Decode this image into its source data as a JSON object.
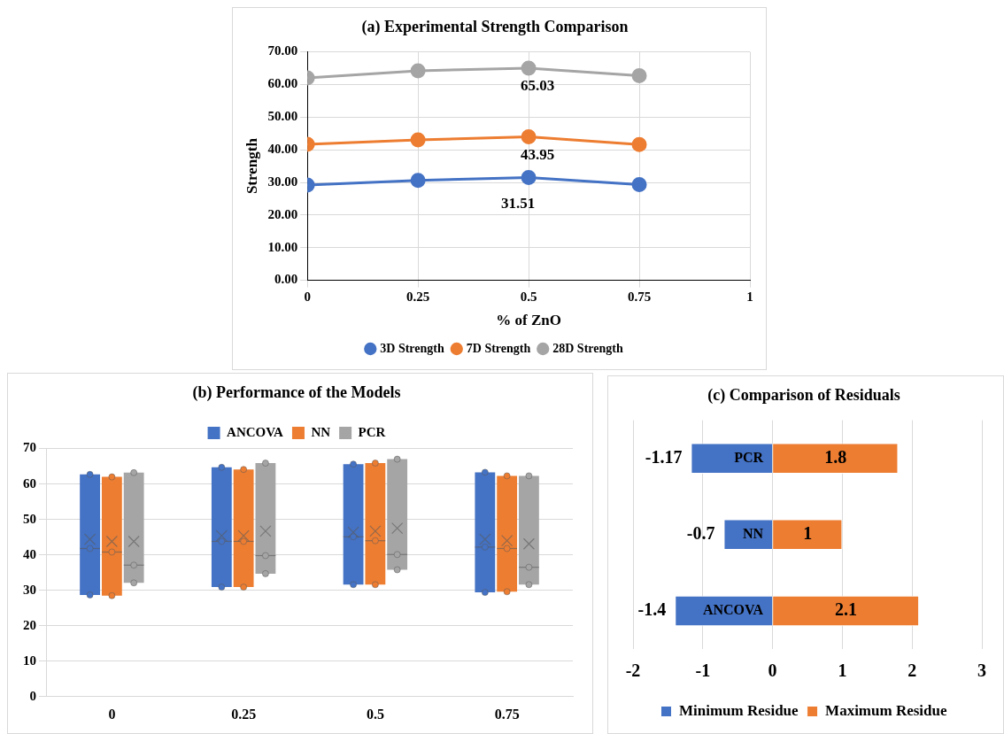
{
  "chart_data": [
    {
      "type": "line",
      "title": "(a) Experimental Strength Comparison",
      "xlabel": "% of ZnO",
      "ylabel": "Strength",
      "x": [
        0,
        0.25,
        0.5,
        0.75
      ],
      "series": [
        {
          "name": "3D Strength",
          "color": "#4472c4",
          "values": [
            29.2,
            30.6,
            31.51,
            29.3
          ],
          "value_labels": [
            null,
            null,
            "31.51",
            null
          ]
        },
        {
          "name": "7D Strength",
          "color": "#ed7d31",
          "values": [
            41.7,
            43.0,
            43.95,
            41.6
          ],
          "value_labels": [
            null,
            null,
            "43.95",
            null
          ]
        },
        {
          "name": "28D Strength",
          "color": "#a5a5a5",
          "values": [
            62.0,
            64.2,
            65.03,
            62.7
          ],
          "value_labels": [
            null,
            null,
            "65.03",
            null
          ]
        }
      ],
      "xlim": [
        0,
        1
      ],
      "xticks": [
        0,
        0.25,
        0.5,
        0.75,
        1
      ],
      "ylim": [
        0,
        70
      ],
      "yticks": [
        {
          "value": 0,
          "label": "0.00"
        },
        {
          "value": 10,
          "label": "10.00"
        },
        {
          "value": 20,
          "label": "20.00"
        },
        {
          "value": 30,
          "label": "30.00"
        },
        {
          "value": 40,
          "label": "40.00"
        },
        {
          "value": 50,
          "label": "50.00"
        },
        {
          "value": 60,
          "label": "60.00"
        },
        {
          "value": 70,
          "label": "70.00"
        }
      ],
      "grid": true,
      "legend": "bottom",
      "marker": "circle",
      "line_style": "solid"
    },
    {
      "type": "box",
      "title": "(b) Performance of the Models",
      "categories": [
        "0",
        "0.25",
        "0.5",
        "0.75"
      ],
      "series": [
        {
          "name": "ANCOVA",
          "color": "#4472c4",
          "boxes": [
            {
              "low": 28.7,
              "q1": 28.7,
              "median": 41.8,
              "q3": 62.7,
              "high": 62.7,
              "mean": 44.4
            },
            {
              "low": 30.9,
              "q1": 30.9,
              "median": 43.8,
              "q3": 64.7,
              "high": 64.7,
              "mean": 45.4
            },
            {
              "low": 31.6,
              "q1": 31.6,
              "median": 45.1,
              "q3": 65.6,
              "high": 65.6,
              "mean": 46.4
            },
            {
              "low": 29.4,
              "q1": 29.4,
              "median": 42.2,
              "q3": 63.3,
              "high": 63.3,
              "mean": 44.4
            }
          ]
        },
        {
          "name": "NN",
          "color": "#ed7d31",
          "boxes": [
            {
              "low": 28.5,
              "q1": 28.5,
              "median": 40.8,
              "q3": 62.0,
              "high": 62.0,
              "mean": 43.8
            },
            {
              "low": 30.9,
              "q1": 30.9,
              "median": 43.8,
              "q3": 64.1,
              "high": 64.1,
              "mean": 45.4
            },
            {
              "low": 31.6,
              "q1": 31.6,
              "median": 44.0,
              "q3": 65.9,
              "high": 65.9,
              "mean": 46.7
            },
            {
              "low": 29.6,
              "q1": 29.6,
              "median": 41.8,
              "q3": 62.3,
              "high": 62.3,
              "mean": 44.0
            }
          ]
        },
        {
          "name": "PCR",
          "color": "#a5a5a5",
          "boxes": [
            {
              "low": 32.1,
              "q1": 32.1,
              "median": 37.1,
              "q3": 63.2,
              "high": 63.2,
              "mean": 43.8
            },
            {
              "low": 34.7,
              "q1": 34.7,
              "median": 39.8,
              "q3": 65.9,
              "high": 65.9,
              "mean": 46.7
            },
            {
              "low": 35.8,
              "q1": 35.8,
              "median": 40.1,
              "q3": 67.0,
              "high": 67.0,
              "mean": 47.5
            },
            {
              "low": 31.6,
              "q1": 31.6,
              "median": 36.5,
              "q3": 62.3,
              "high": 62.3,
              "mean": 43.1
            }
          ]
        },
        {
          "type": "scatter",
          "color": "#4472c4",
          "x": [
            "0",
            "0",
            "0",
            "0.25",
            "0.25",
            "0.25",
            "0.5",
            "0.5",
            "0.5",
            "0.75",
            "0.75",
            "0.75"
          ],
          "values": [
            28.7,
            41.8,
            62.7,
            30.9,
            43.8,
            64.7,
            31.6,
            45.1,
            65.6,
            29.4,
            42.2,
            63.3
          ]
        },
        {
          "type": "scatter",
          "color": "#ed7d31",
          "x": [
            "0",
            "0",
            "0",
            "0.25",
            "0.25",
            "0.25",
            "0.5",
            "0.5",
            "0.5",
            "0.75",
            "0.75",
            "0.75"
          ],
          "values": [
            28.5,
            40.8,
            62.0,
            30.9,
            43.8,
            64.1,
            31.6,
            44.0,
            65.9,
            29.6,
            41.8,
            62.3
          ]
        },
        {
          "type": "scatter",
          "color": "#a5a5a5",
          "x": [
            "0",
            "0",
            "0",
            "0.25",
            "0.25",
            "0.25",
            "0.5",
            "0.5",
            "0.5",
            "0.75",
            "0.75",
            "0.75"
          ],
          "values": [
            32.1,
            37.1,
            63.2,
            34.7,
            39.8,
            65.9,
            35.8,
            40.1,
            67.0,
            31.6,
            36.5,
            62.3
          ]
        }
      ],
      "ylim": [
        0,
        70
      ],
      "yticks": [
        0,
        10,
        20,
        30,
        40,
        50,
        60,
        70
      ],
      "grid": "y",
      "legend": "top",
      "marker": "circle"
    },
    {
      "type": "bar",
      "orientation": "horizontal",
      "stacked": true,
      "title": "(c) Comparison of Residuals",
      "categories": [
        "PCR",
        "NN",
        "ANCOVA"
      ],
      "series": [
        {
          "name": "Minimum Residue",
          "color": "#4472c4",
          "values": [
            -1.17,
            -0.7,
            -1.4
          ]
        },
        {
          "name": "Maximum Residue",
          "color": "#ed7d31",
          "values": [
            1.8,
            1,
            2.1
          ]
        }
      ],
      "xlim": [
        -2,
        3
      ],
      "xticks": [
        -2,
        -1,
        0,
        1,
        2,
        3
      ],
      "grid": "x",
      "legend": "bottom",
      "data_labels": true
    }
  ]
}
